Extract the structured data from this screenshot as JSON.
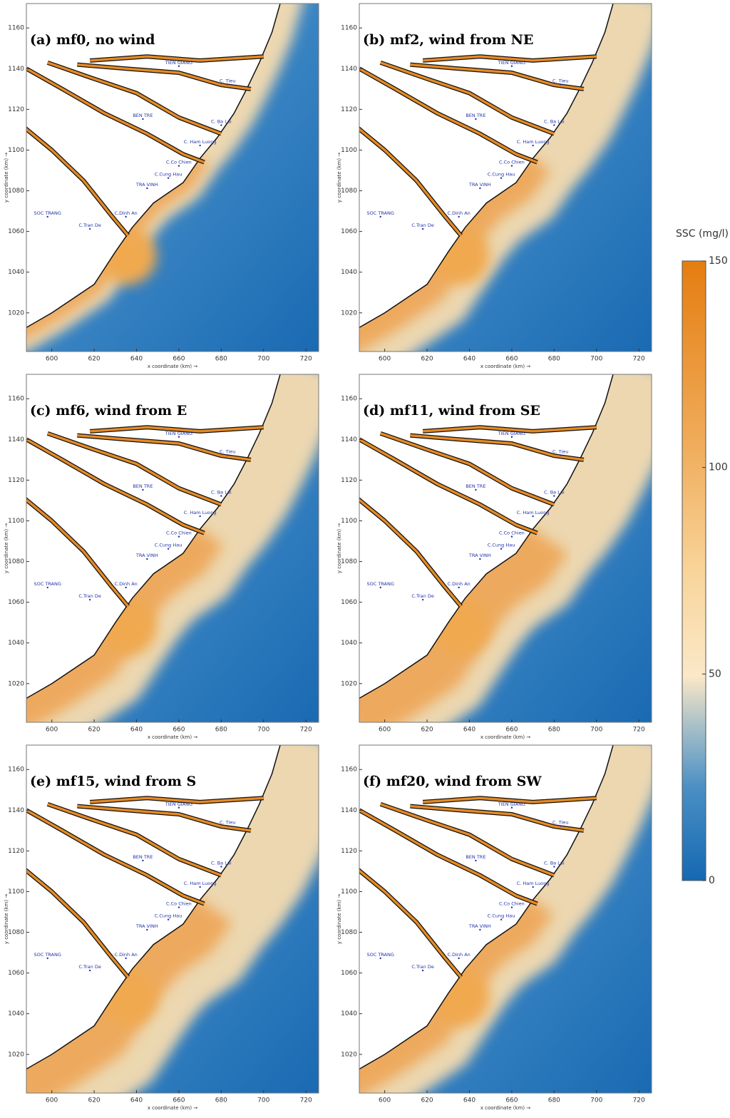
{
  "maps": {
    "xlabel": "x coordinate (km) →",
    "ylabel": "y coordinate (km) →",
    "xlim": [
      588,
      726
    ],
    "ylim": [
      1001,
      1172
    ],
    "xticks": [
      600,
      620,
      640,
      660,
      680,
      700,
      720
    ],
    "yticks": [
      1020,
      1040,
      1060,
      1080,
      1100,
      1120,
      1140,
      1160
    ],
    "places": [
      "TIEN GIANG",
      "C. Tieu",
      "C. Ba Lai",
      "BEN TRE",
      "C. Ham Luong",
      "C.Co Chien",
      "C.Cung Hau",
      "TRA VINH",
      "SOC TRANG",
      "C.Dinh An",
      "C.Tran De"
    ],
    "panels": [
      {
        "title": "(a) mf0, no wind"
      },
      {
        "title": "(b) mf2, wind from NE"
      },
      {
        "title": "(c) mf6, wind from E"
      },
      {
        "title": "(d) mf11, wind from SE"
      },
      {
        "title": "(e) mf15, wind from S"
      },
      {
        "title": "(f) mf20, wind from SW"
      }
    ]
  },
  "colorbar": {
    "title": "SSC (mg/l)",
    "lim": [
      0,
      150
    ],
    "ticks": [
      0,
      50,
      100,
      150
    ]
  }
}
